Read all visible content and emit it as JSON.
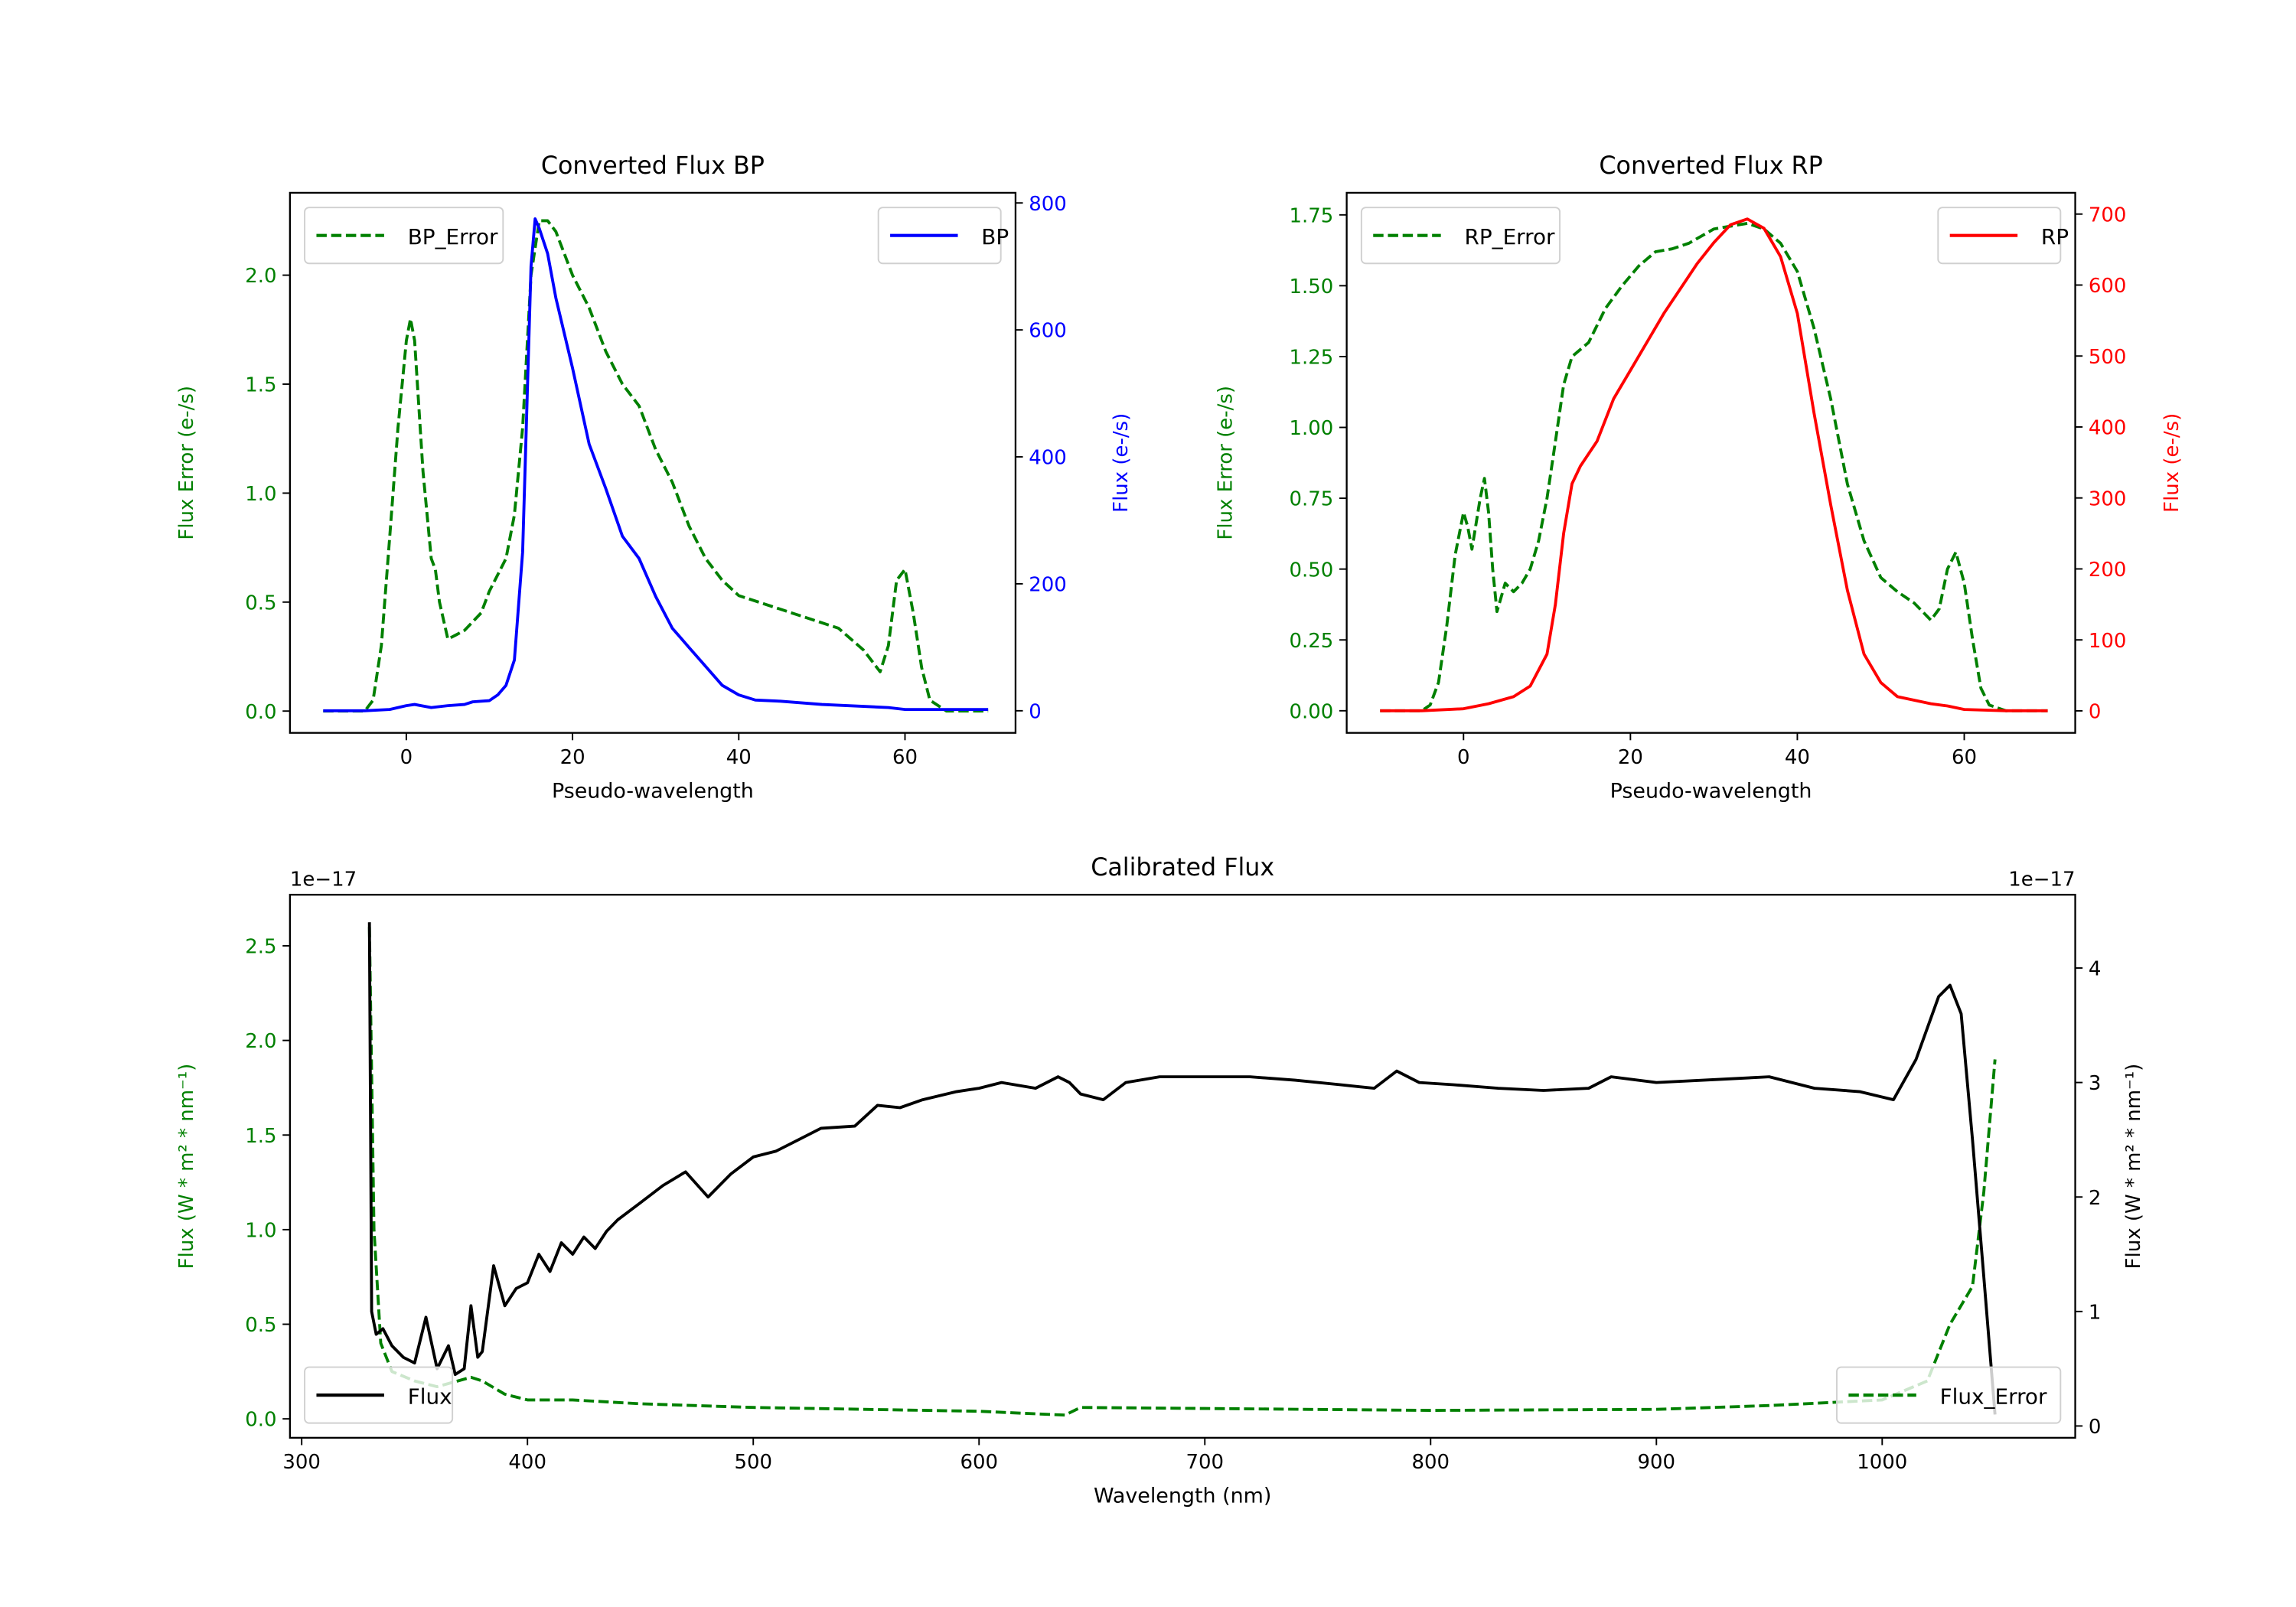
{
  "colors": {
    "green": "#008000",
    "blue": "#0000ff",
    "red": "#ff0000",
    "black": "#000000"
  },
  "chart_data": [
    {
      "type": "line",
      "title": "Converted Flux BP",
      "xlabel": "Pseudo-wavelength",
      "ylabel": "Flux Error (e-/s)",
      "ylabel_right": "Flux (e-/s)",
      "xlim": [
        -14,
        73.3
      ],
      "ylim": [
        -0.1,
        2.378
      ],
      "ylim_right": [
        -34.8,
        816
      ],
      "xticks": [
        0,
        20,
        40,
        60
      ],
      "yticks": [
        "0.0",
        "0.5",
        "1.0",
        "1.5",
        "2.0"
      ],
      "yticks_right": [
        "0",
        "200",
        "400",
        "600",
        "800"
      ],
      "right_color": "#0000ff",
      "series": [
        {
          "name": "BP_Error",
          "axis": "left",
          "style": "dashed",
          "color": "#008000",
          "legend": "upper left",
          "x": [
            -10,
            -5,
            -4,
            -3,
            -2,
            -1,
            0,
            0.5,
            1,
            2,
            3,
            3.5,
            4,
            5,
            6,
            7,
            9,
            10,
            12,
            13,
            14,
            15,
            16,
            17,
            18,
            20,
            22,
            24,
            26,
            28,
            30,
            32,
            34,
            36,
            38,
            40,
            44,
            48,
            52,
            55,
            57,
            58,
            59,
            60,
            61,
            62,
            63,
            65,
            70
          ],
          "y": [
            0,
            0,
            0.05,
            0.3,
            0.8,
            1.3,
            1.7,
            1.8,
            1.7,
            1.1,
            0.7,
            0.65,
            0.5,
            0.33,
            0.35,
            0.37,
            0.45,
            0.55,
            0.7,
            0.9,
            1.3,
            2.0,
            2.25,
            2.25,
            2.2,
            2.0,
            1.85,
            1.65,
            1.5,
            1.4,
            1.2,
            1.05,
            0.85,
            0.7,
            0.6,
            0.53,
            0.48,
            0.43,
            0.38,
            0.28,
            0.18,
            0.3,
            0.6,
            0.65,
            0.45,
            0.2,
            0.05,
            0,
            0
          ]
        },
        {
          "name": "BP",
          "axis": "right",
          "style": "solid",
          "color": "#0000ff",
          "legend": "upper right",
          "x": [
            -10,
            -5,
            -2,
            0,
            1,
            3,
            5,
            7,
            8,
            10,
            11,
            12,
            13,
            14,
            15,
            15.5,
            16,
            17,
            18,
            20,
            22,
            24,
            26,
            28,
            30,
            32,
            34,
            36,
            38,
            40,
            42,
            45,
            50,
            55,
            58,
            60,
            65,
            70
          ],
          "y": [
            0,
            0,
            2,
            8,
            10,
            5,
            8,
            10,
            14,
            16,
            25,
            40,
            80,
            250,
            700,
            775,
            760,
            720,
            650,
            540,
            420,
            350,
            275,
            240,
            180,
            130,
            100,
            70,
            40,
            25,
            17,
            15,
            10,
            7,
            5,
            2,
            2,
            2
          ]
        }
      ]
    },
    {
      "type": "line",
      "title": "Converted Flux RP",
      "xlabel": "Pseudo-wavelength",
      "ylabel": "Flux Error (e-/s)",
      "ylabel_right": "Flux (e-/s)",
      "xlim": [
        -14,
        73.3
      ],
      "ylim": [
        -0.078,
        1.828
      ],
      "ylim_right": [
        -31,
        730
      ],
      "xticks": [
        0,
        20,
        40,
        60
      ],
      "yticks": [
        "0.00",
        "0.25",
        "0.50",
        "0.75",
        "1.00",
        "1.25",
        "1.50",
        "1.75"
      ],
      "yticks_right": [
        "0",
        "100",
        "200",
        "300",
        "400",
        "500",
        "600",
        "700"
      ],
      "right_color": "#ff0000",
      "series": [
        {
          "name": "RP_Error",
          "axis": "left",
          "style": "dashed",
          "color": "#008000",
          "legend": "upper left",
          "x": [
            -10,
            -5,
            -4,
            -3,
            -2,
            -1,
            0,
            0.5,
            1,
            2,
            2.5,
            3,
            3.5,
            4,
            5,
            6,
            7,
            8,
            9,
            10,
            11,
            12,
            13,
            15,
            17,
            19,
            21,
            23,
            25,
            27,
            30,
            32,
            34,
            36,
            38,
            40,
            42,
            44,
            46,
            48,
            50,
            52,
            54,
            56,
            57,
            58,
            59,
            60,
            61,
            62,
            63,
            65,
            70
          ],
          "y": [
            0,
            0,
            0.02,
            0.1,
            0.3,
            0.55,
            0.7,
            0.65,
            0.57,
            0.75,
            0.82,
            0.7,
            0.5,
            0.35,
            0.45,
            0.42,
            0.45,
            0.5,
            0.6,
            0.75,
            0.95,
            1.15,
            1.25,
            1.3,
            1.42,
            1.5,
            1.57,
            1.62,
            1.63,
            1.65,
            1.7,
            1.71,
            1.72,
            1.7,
            1.65,
            1.55,
            1.35,
            1.1,
            0.8,
            0.6,
            0.47,
            0.42,
            0.38,
            0.32,
            0.36,
            0.5,
            0.56,
            0.45,
            0.25,
            0.08,
            0.02,
            0,
            0
          ]
        },
        {
          "name": "RP",
          "axis": "right",
          "style": "solid",
          "color": "#ff0000",
          "legend": "upper right",
          "x": [
            -10,
            -5,
            0,
            3,
            6,
            8,
            10,
            11,
            12,
            13,
            14,
            16,
            18,
            20,
            24,
            28,
            30,
            32,
            34,
            36,
            38,
            40,
            42,
            44,
            46,
            48,
            50,
            52,
            56,
            58,
            60,
            65,
            70
          ],
          "y": [
            0,
            0,
            3,
            10,
            20,
            35,
            80,
            150,
            250,
            320,
            345,
            380,
            440,
            480,
            560,
            630,
            660,
            685,
            693,
            680,
            640,
            560,
            420,
            290,
            170,
            80,
            40,
            20,
            10,
            7,
            2,
            0,
            0
          ]
        }
      ]
    },
    {
      "type": "line",
      "title": "Calibrated Flux",
      "xlabel": "Wavelength (nm)",
      "ylabel": "Flux (W * m² * nm⁻¹)",
      "ylabel_right": "Flux (W * m² * nm⁻¹)",
      "offset_left": "1e−17",
      "offset_right": "1e−17",
      "xlim": [
        294.8,
        1085.5
      ],
      "ylim": [
        -0.1,
        2.77
      ],
      "ylim_right": [
        -0.103,
        4.64
      ],
      "xticks": [
        300,
        400,
        500,
        600,
        700,
        800,
        900,
        1000
      ],
      "yticks": [
        "0.0",
        "0.5",
        "1.0",
        "1.5",
        "2.0",
        "2.5"
      ],
      "yticks_right": [
        "0",
        "1",
        "2",
        "3",
        "4"
      ],
      "right_color": "#000000",
      "series": [
        {
          "name": "Flux_Error",
          "axis": "left",
          "style": "dashed",
          "color": "#008000",
          "legend": "lower right",
          "x": [
            330,
            332,
            335,
            340,
            350,
            360,
            375,
            380,
            390,
            400,
            420,
            450,
            500,
            600,
            638,
            645,
            700,
            800,
            900,
            950,
            1000,
            1020,
            1030,
            1040,
            1045,
            1050
          ],
          "y": [
            2.6,
            1.0,
            0.4,
            0.25,
            0.2,
            0.17,
            0.22,
            0.2,
            0.13,
            0.1,
            0.1,
            0.08,
            0.06,
            0.04,
            0.02,
            0.06,
            0.055,
            0.045,
            0.05,
            0.07,
            0.1,
            0.2,
            0.5,
            0.7,
            1.2,
            1.9
          ]
        },
        {
          "name": "Flux",
          "axis": "right",
          "style": "solid",
          "color": "#000000",
          "legend": "lower left",
          "x": [
            330,
            331,
            333,
            336,
            340,
            345,
            350,
            355,
            360,
            365,
            368,
            372,
            375,
            378,
            380,
            385,
            390,
            395,
            400,
            405,
            410,
            415,
            420,
            425,
            430,
            435,
            440,
            450,
            460,
            470,
            480,
            490,
            500,
            510,
            520,
            530,
            545,
            555,
            565,
            575,
            590,
            600,
            610,
            625,
            635,
            640,
            645,
            655,
            665,
            680,
            700,
            720,
            740,
            760,
            775,
            785,
            795,
            810,
            830,
            850,
            870,
            880,
            900,
            930,
            950,
            970,
            990,
            1005,
            1015,
            1025,
            1030,
            1035,
            1040,
            1045,
            1050
          ],
          "y": [
            4.4,
            1.0,
            0.8,
            0.85,
            0.7,
            0.6,
            0.55,
            0.95,
            0.5,
            0.7,
            0.45,
            0.5,
            1.05,
            0.6,
            0.65,
            1.4,
            1.05,
            1.2,
            1.25,
            1.5,
            1.35,
            1.6,
            1.5,
            1.65,
            1.55,
            1.7,
            1.8,
            1.95,
            2.1,
            2.22,
            2.0,
            2.2,
            2.35,
            2.4,
            2.5,
            2.6,
            2.62,
            2.8,
            2.78,
            2.85,
            2.92,
            2.95,
            3.0,
            2.95,
            3.05,
            3.0,
            2.9,
            2.85,
            3.0,
            3.05,
            3.05,
            3.05,
            3.02,
            2.98,
            2.95,
            3.1,
            3.0,
            2.98,
            2.95,
            2.93,
            2.95,
            3.05,
            3.0,
            3.03,
            3.05,
            2.95,
            2.92,
            2.85,
            3.2,
            3.75,
            3.85,
            3.6,
            2.5,
            1.3,
            0.1
          ]
        }
      ]
    }
  ]
}
